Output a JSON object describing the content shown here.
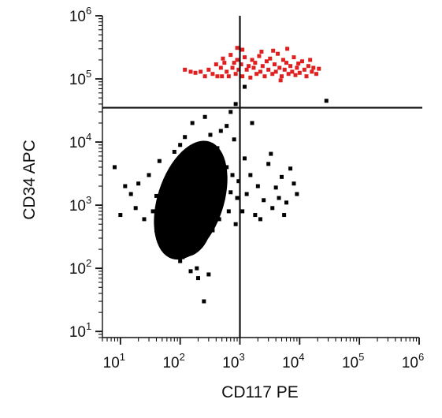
{
  "chart_data": {
    "type": "scatter",
    "title": "",
    "xlabel": "CD117 PE",
    "ylabel": "CD34 APC",
    "xscale": "log",
    "yscale": "log",
    "xlim": [
      5,
      1000000
    ],
    "ylim": [
      8,
      1000000
    ],
    "x_ticks": [
      {
        "base": "10",
        "exp": "1",
        "value": 10
      },
      {
        "base": "10",
        "exp": "2",
        "value": 100
      },
      {
        "base": "10",
        "exp": "3",
        "value": 1000
      },
      {
        "base": "10",
        "exp": "4",
        "value": 10000
      },
      {
        "base": "10",
        "exp": "5",
        "value": 100000
      },
      {
        "base": "10",
        "exp": "6",
        "value": 1000000
      }
    ],
    "y_ticks": [
      {
        "base": "10",
        "exp": "1",
        "value": 10
      },
      {
        "base": "10",
        "exp": "2",
        "value": 100
      },
      {
        "base": "10",
        "exp": "3",
        "value": 1000
      },
      {
        "base": "10",
        "exp": "4",
        "value": 10000
      },
      {
        "base": "10",
        "exp": "5",
        "value": 100000
      },
      {
        "base": "10",
        "exp": "6",
        "value": 1000000
      }
    ],
    "gates": {
      "x": 1000,
      "y": 35000
    },
    "grid": false,
    "series": [
      {
        "color": "#000000",
        "marker": "square",
        "cluster_center": [
          150,
          1200
        ],
        "points": [
          [
            12,
            2000
          ],
          [
            15,
            1500
          ],
          [
            8,
            4000
          ],
          [
            10,
            700
          ],
          [
            18,
            900
          ],
          [
            20,
            2200
          ],
          [
            25,
            600
          ],
          [
            30,
            3000
          ],
          [
            35,
            800
          ],
          [
            40,
            1400
          ],
          [
            45,
            5000
          ],
          [
            50,
            350
          ],
          [
            55,
            1900
          ],
          [
            60,
            900
          ],
          [
            65,
            2600
          ],
          [
            70,
            450
          ],
          [
            75,
            1200
          ],
          [
            80,
            7000
          ],
          [
            85,
            600
          ],
          [
            90,
            3500
          ],
          [
            95,
            250
          ],
          [
            100,
            9000
          ],
          [
            110,
            150
          ],
          [
            120,
            12000
          ],
          [
            130,
            500
          ],
          [
            140,
            2000
          ],
          [
            150,
            1100
          ],
          [
            160,
            20000
          ],
          [
            170,
            300
          ],
          [
            180,
            4500
          ],
          [
            190,
            100
          ],
          [
            200,
            1500
          ],
          [
            220,
            6000
          ],
          [
            240,
            700
          ],
          [
            260,
            25000
          ],
          [
            280,
            2500
          ],
          [
            300,
            900
          ],
          [
            320,
            13000
          ],
          [
            350,
            400
          ],
          [
            380,
            3200
          ],
          [
            400,
            1800
          ],
          [
            420,
            8000
          ],
          [
            450,
            600
          ],
          [
            480,
            15000
          ],
          [
            500,
            1200
          ],
          [
            550,
            2200
          ],
          [
            600,
            4000
          ],
          [
            650,
            800
          ],
          [
            700,
            1600
          ],
          [
            750,
            3000
          ],
          [
            800,
            11000
          ],
          [
            850,
            500
          ],
          [
            900,
            1300
          ],
          [
            950,
            2400
          ],
          [
            1100,
            800
          ],
          [
            1300,
            1500
          ],
          [
            1500,
            3000
          ],
          [
            1800,
            700
          ],
          [
            2000,
            2000
          ],
          [
            2500,
            1200
          ],
          [
            3000,
            4500
          ],
          [
            3500,
            900
          ],
          [
            4000,
            1900
          ],
          [
            5000,
            2800
          ],
          [
            6000,
            1100
          ],
          [
            7000,
            3800
          ],
          [
            8000,
            2200
          ],
          [
            9000,
            1500
          ],
          [
            1200,
            5500
          ],
          [
            2200,
            600
          ],
          [
            3300,
            6500
          ],
          [
            4500,
            1300
          ],
          [
            5500,
            700
          ],
          [
            1600,
            20000
          ],
          [
            700,
            30000
          ],
          [
            600,
            18000
          ],
          [
            250,
            30
          ],
          [
            200,
            70
          ],
          [
            150,
            90
          ],
          [
            300,
            80
          ],
          [
            100,
            130
          ],
          [
            60,
            180
          ],
          [
            40,
            400
          ],
          [
            850,
            40000
          ]
        ]
      },
      {
        "color": "#e02020",
        "marker": "square",
        "points": [
          [
            120,
            140000
          ],
          [
            150,
            130000
          ],
          [
            180,
            125000
          ],
          [
            220,
            130000
          ],
          [
            260,
            110000
          ],
          [
            300,
            140000
          ],
          [
            350,
            120000
          ],
          [
            400,
            170000
          ],
          [
            420,
            110000
          ],
          [
            480,
            150000
          ],
          [
            520,
            210000
          ],
          [
            550,
            180000
          ],
          [
            600,
            130000
          ],
          [
            650,
            110000
          ],
          [
            700,
            240000
          ],
          [
            750,
            150000
          ],
          [
            800,
            180000
          ],
          [
            850,
            120000
          ],
          [
            900,
            200000
          ],
          [
            950,
            140000
          ],
          [
            1050,
            170000
          ],
          [
            1100,
            110000
          ],
          [
            1200,
            220000
          ],
          [
            1300,
            140000
          ],
          [
            1400,
            160000
          ],
          [
            1500,
            105000
          ],
          [
            1600,
            200000
          ],
          [
            1700,
            150000
          ],
          [
            1800,
            180000
          ],
          [
            1900,
            120000
          ],
          [
            2100,
            230000
          ],
          [
            2200,
            130000
          ],
          [
            2400,
            160000
          ],
          [
            2600,
            110000
          ],
          [
            2800,
            190000
          ],
          [
            3000,
            140000
          ],
          [
            3200,
            210000
          ],
          [
            3500,
            120000
          ],
          [
            3800,
            170000
          ],
          [
            4000,
            130000
          ],
          [
            4300,
            250000
          ],
          [
            4600,
            150000
          ],
          [
            5000,
            110000
          ],
          [
            5300,
            200000
          ],
          [
            5600,
            140000
          ],
          [
            6000,
            180000
          ],
          [
            6500,
            120000
          ],
          [
            7000,
            160000
          ],
          [
            7500,
            130000
          ],
          [
            8000,
            220000
          ],
          [
            8500,
            115000
          ],
          [
            9000,
            150000
          ],
          [
            9500,
            175000
          ],
          [
            10000,
            125000
          ],
          [
            11000,
            190000
          ],
          [
            12000,
            140000
          ],
          [
            13000,
            110000
          ],
          [
            14000,
            160000
          ],
          [
            15000,
            200000
          ],
          [
            16000,
            130000
          ],
          [
            17000,
            150000
          ],
          [
            19000,
            120000
          ],
          [
            21000,
            145000
          ],
          [
            1100,
            290000
          ],
          [
            900,
            310000
          ],
          [
            500,
            110000
          ],
          [
            2300,
            270000
          ],
          [
            4800,
            95000
          ],
          [
            6200,
            300000
          ],
          [
            3600,
            280000
          ]
        ]
      }
    ],
    "outliers": [
      [
        28000,
        45000
      ],
      [
        1200,
        75000
      ]
    ]
  }
}
